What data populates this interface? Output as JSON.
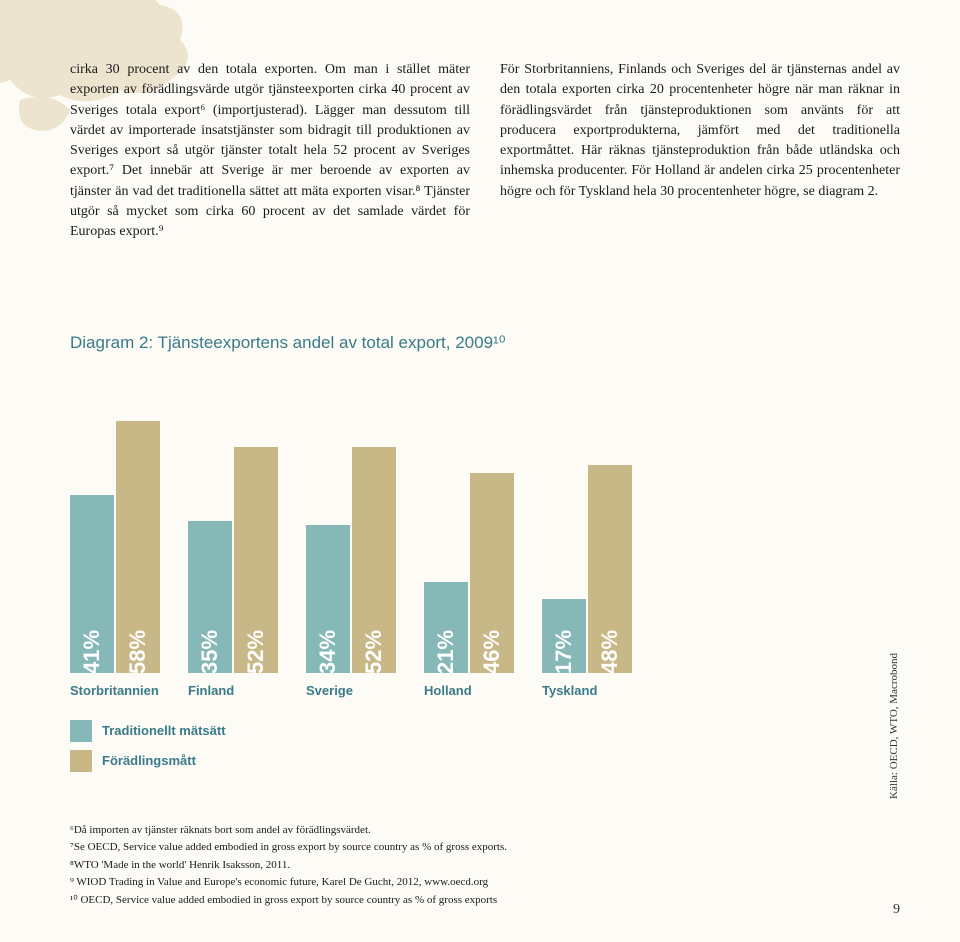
{
  "body": {
    "left_col": "cirka 30 procent av den totala exporten. Om man i stället mäter exporten av förädlingsvärde utgör tjänsteexporten cirka 40 procent av Sveriges totala export⁶ (importjusterad). Lägger man dessutom till värdet av importerade insatstjänster som bidragit till produktionen av Sveriges export så utgör tjänster totalt hela 52 procent av Sveriges export.⁷ Det innebär att Sverige är mer beroende av exporten av tjänster än vad det traditionella sättet att mäta exporten visar.⁸ Tjänster utgör så mycket som cirka 60 procent av det samlade värdet för Europas export.⁹",
    "right_col": "För Storbritanniens, Finlands och Sveriges del är tjänsternas andel av den totala exporten cirka 20 procentenheter högre när man räknar in förädlingsvärdet från tjänsteproduktionen som använts för att producera exportprodukterna, jämfört med det traditionella exportmåttet. Här räknas tjänsteproduktion från både utländska och inhemska producenter. För Holland är andelen cirka 25 procentenheter högre och för Tyskland hela 30 procentenheter högre, se diagram 2."
  },
  "chart": {
    "title": "Diagram 2: Tjänsteexportens andel av total export, 2009¹⁰",
    "type": "grouped-bar",
    "colors": {
      "traditional": "#86b8b8",
      "value_added": "#c9b887"
    },
    "max_value": 60,
    "groups": [
      {
        "country": "Storbritannien",
        "traditional": 41,
        "value_added": 58
      },
      {
        "country": "Finland",
        "traditional": 35,
        "value_added": 52
      },
      {
        "country": "Sverige",
        "traditional": 34,
        "value_added": 52
      },
      {
        "country": "Holland",
        "traditional": 21,
        "value_added": 46
      },
      {
        "country": "Tyskland",
        "traditional": 17,
        "value_added": 48
      }
    ],
    "source": "Källa: OECD, WTO, Macrobond",
    "legend": {
      "traditional": "Traditionellt mätsätt",
      "value_added": "Förädlingsmått"
    }
  },
  "footnotes": {
    "f6": "⁶Då importen av tjänster räknats bort som andel av förädlingsvärdet.",
    "f7": "⁷Se OECD, Service value added embodied in gross export by source country as % of gross exports.",
    "f8": "⁸WTO 'Made in the world' Henrik Isaksson, 2011.",
    "f9": "⁹ WIOD Trading in Value and Europe's economic future, Karel De Gucht, 2012, www.oecd.org",
    "f10": "¹⁰ OECD, Service value added embodied in gross export by source country as % of gross exports"
  },
  "page_number": "9"
}
